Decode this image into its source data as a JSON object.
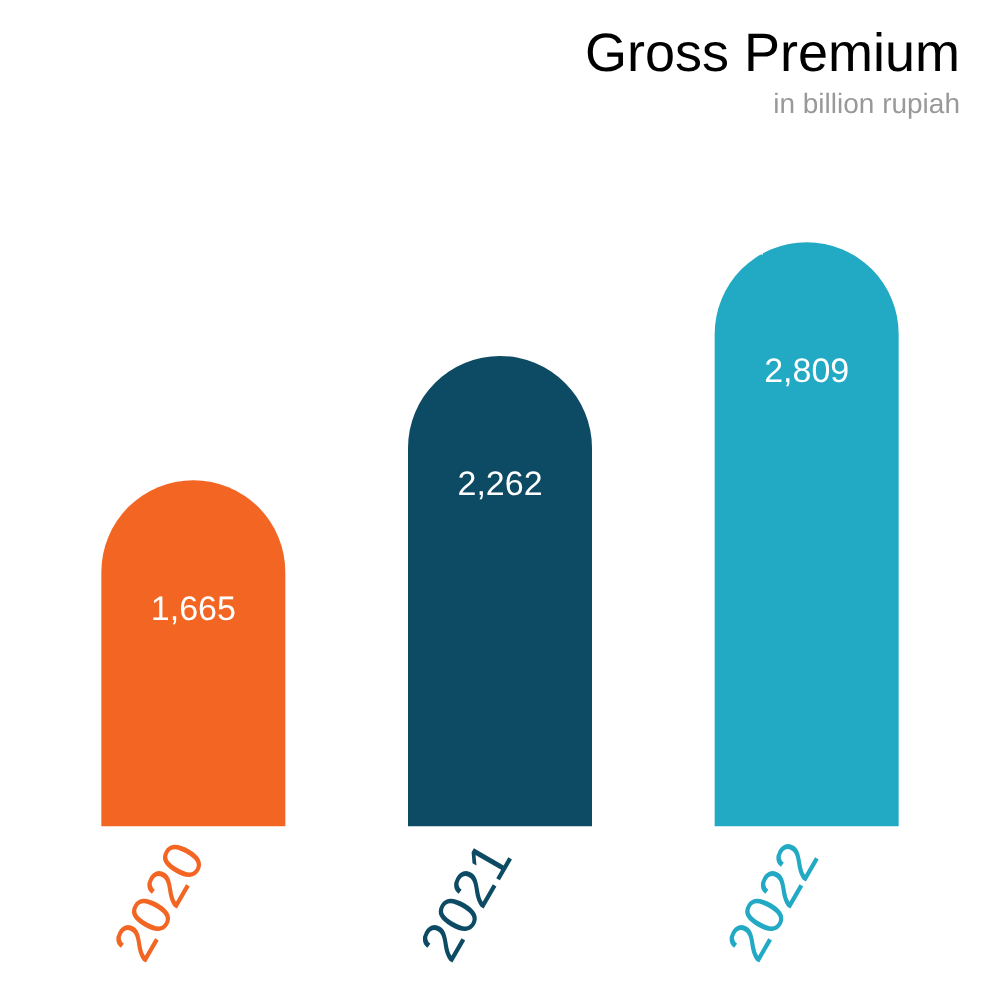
{
  "chart_data": {
    "type": "bar",
    "title": "Gross Premium",
    "subtitle": "in billion rupiah",
    "categories": [
      "2020",
      "2021",
      "2022"
    ],
    "values": [
      1665,
      2262,
      2809
    ],
    "colors": [
      "#f26522",
      "#0d4a63",
      "#22a9c4"
    ],
    "value_labels": [
      "1,665",
      "2,262",
      "2,809"
    ],
    "grid": false,
    "tick_labels": "x"
  }
}
